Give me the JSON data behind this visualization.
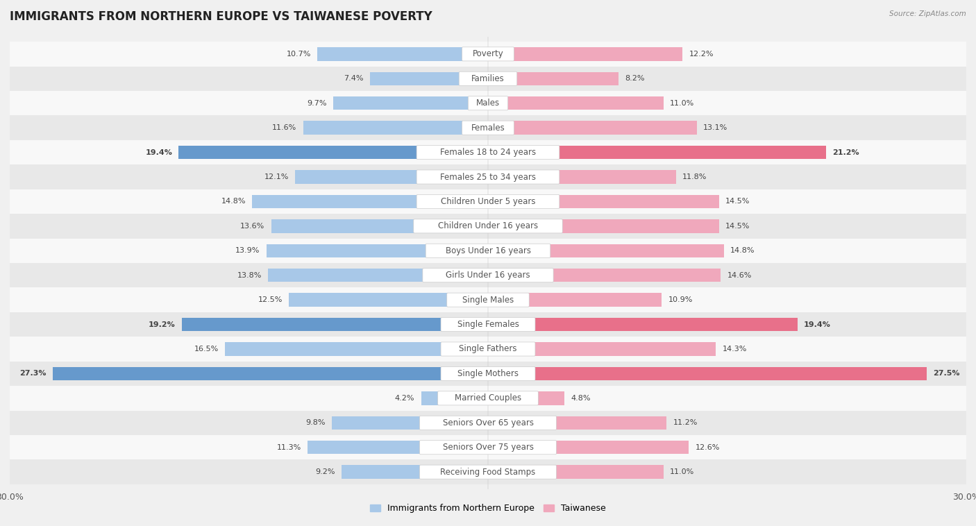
{
  "title": "IMMIGRANTS FROM NORTHERN EUROPE VS TAIWANESE POVERTY",
  "source": "Source: ZipAtlas.com",
  "categories": [
    "Poverty",
    "Families",
    "Males",
    "Females",
    "Females 18 to 24 years",
    "Females 25 to 34 years",
    "Children Under 5 years",
    "Children Under 16 years",
    "Boys Under 16 years",
    "Girls Under 16 years",
    "Single Males",
    "Single Females",
    "Single Fathers",
    "Single Mothers",
    "Married Couples",
    "Seniors Over 65 years",
    "Seniors Over 75 years",
    "Receiving Food Stamps"
  ],
  "left_values": [
    10.7,
    7.4,
    9.7,
    11.6,
    19.4,
    12.1,
    14.8,
    13.6,
    13.9,
    13.8,
    12.5,
    19.2,
    16.5,
    27.3,
    4.2,
    9.8,
    11.3,
    9.2
  ],
  "right_values": [
    12.2,
    8.2,
    11.0,
    13.1,
    21.2,
    11.8,
    14.5,
    14.5,
    14.8,
    14.6,
    10.9,
    19.4,
    14.3,
    27.5,
    4.8,
    11.2,
    12.6,
    11.0
  ],
  "left_color": "#a8c8e8",
  "right_color": "#f0a8bc",
  "highlight_left_color": "#6699cc",
  "highlight_right_color": "#e8708a",
  "highlight_rows": [
    4,
    11,
    13
  ],
  "axis_max": 30.0,
  "xlabel_left": "Immigrants from Northern Europe",
  "xlabel_right": "Taiwanese",
  "left_color_legend": "#a8c8e8",
  "right_color_legend": "#f0a8bc",
  "background_color": "#f0f0f0",
  "row_bg_light": "#f8f8f8",
  "row_bg_dark": "#e8e8e8",
  "title_fontsize": 12,
  "label_fontsize": 8.5,
  "value_fontsize": 8
}
